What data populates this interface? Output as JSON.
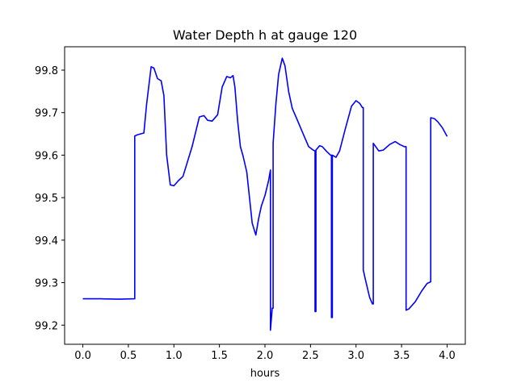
{
  "chart_data": {
    "type": "line",
    "title": "Water Depth h at gauge 120",
    "xlabel": "hours",
    "ylabel": "",
    "xlim": [
      -0.2,
      4.2
    ],
    "ylim": [
      99.155,
      99.855
    ],
    "xticks": [
      0.0,
      0.5,
      1.0,
      1.5,
      2.0,
      2.5,
      3.0,
      3.5,
      4.0
    ],
    "xtick_labels": [
      "0.0",
      "0.5",
      "1.0",
      "1.5",
      "2.0",
      "2.5",
      "3.0",
      "3.5",
      "4.0"
    ],
    "yticks": [
      99.2,
      99.3,
      99.4,
      99.5,
      99.6,
      99.7,
      99.8
    ],
    "ytick_labels": [
      "99.2",
      "99.3",
      "99.4",
      "99.5",
      "99.6",
      "99.7",
      "99.8"
    ],
    "grid": false,
    "series": [
      {
        "color": "#0000ff",
        "x": [
          0.0,
          0.2,
          0.4,
          0.57,
          0.57,
          0.6,
          0.67,
          0.7,
          0.75,
          0.78,
          0.82,
          0.86,
          0.89,
          0.92,
          0.96,
          1.0,
          1.05,
          1.1,
          1.2,
          1.28,
          1.33,
          1.37,
          1.42,
          1.48,
          1.53,
          1.58,
          1.62,
          1.65,
          1.67,
          1.7,
          1.73,
          1.76,
          1.8,
          1.86,
          1.9,
          1.93,
          1.96,
          2.0,
          2.04,
          2.06,
          2.06,
          2.08,
          2.09,
          2.09,
          2.12,
          2.15,
          2.19,
          2.22,
          2.26,
          2.3,
          2.35,
          2.42,
          2.48,
          2.53,
          2.55,
          2.55,
          2.56,
          2.56,
          2.6,
          2.63,
          2.68,
          2.72,
          2.73,
          2.73,
          2.74,
          2.74,
          2.78,
          2.82,
          2.88,
          2.95,
          3.0,
          3.04,
          3.07,
          3.08,
          3.08,
          3.1,
          3.15,
          3.18,
          3.19,
          3.19,
          3.25,
          3.3,
          3.37,
          3.43,
          3.48,
          3.53,
          3.55,
          3.55,
          3.58,
          3.65,
          3.72,
          3.78,
          3.82,
          3.82,
          3.86,
          3.9,
          3.95,
          4.0
        ],
        "y": [
          99.262,
          99.262,
          99.261,
          99.262,
          99.645,
          99.648,
          99.652,
          99.72,
          99.808,
          99.805,
          99.78,
          99.775,
          99.74,
          99.6,
          99.53,
          99.528,
          99.54,
          99.55,
          99.62,
          99.69,
          99.693,
          99.682,
          99.68,
          99.695,
          99.76,
          99.785,
          99.782,
          99.787,
          99.76,
          99.68,
          99.62,
          99.598,
          99.56,
          99.44,
          99.412,
          99.45,
          99.48,
          99.505,
          99.54,
          99.565,
          99.188,
          99.24,
          99.24,
          99.628,
          99.72,
          99.79,
          99.828,
          99.81,
          99.75,
          99.71,
          99.685,
          99.65,
          99.62,
          99.612,
          99.61,
          99.232,
          99.232,
          99.612,
          99.622,
          99.62,
          99.608,
          99.6,
          99.6,
          99.218,
          99.218,
          99.6,
          99.595,
          99.61,
          99.66,
          99.715,
          99.728,
          99.722,
          99.712,
          99.712,
          99.33,
          99.31,
          99.265,
          99.25,
          99.25,
          99.628,
          99.61,
          99.612,
          99.625,
          99.632,
          99.625,
          99.62,
          99.62,
          99.235,
          99.238,
          99.255,
          99.28,
          99.298,
          99.302,
          99.688,
          99.686,
          99.678,
          99.664,
          99.644
        ]
      }
    ]
  }
}
